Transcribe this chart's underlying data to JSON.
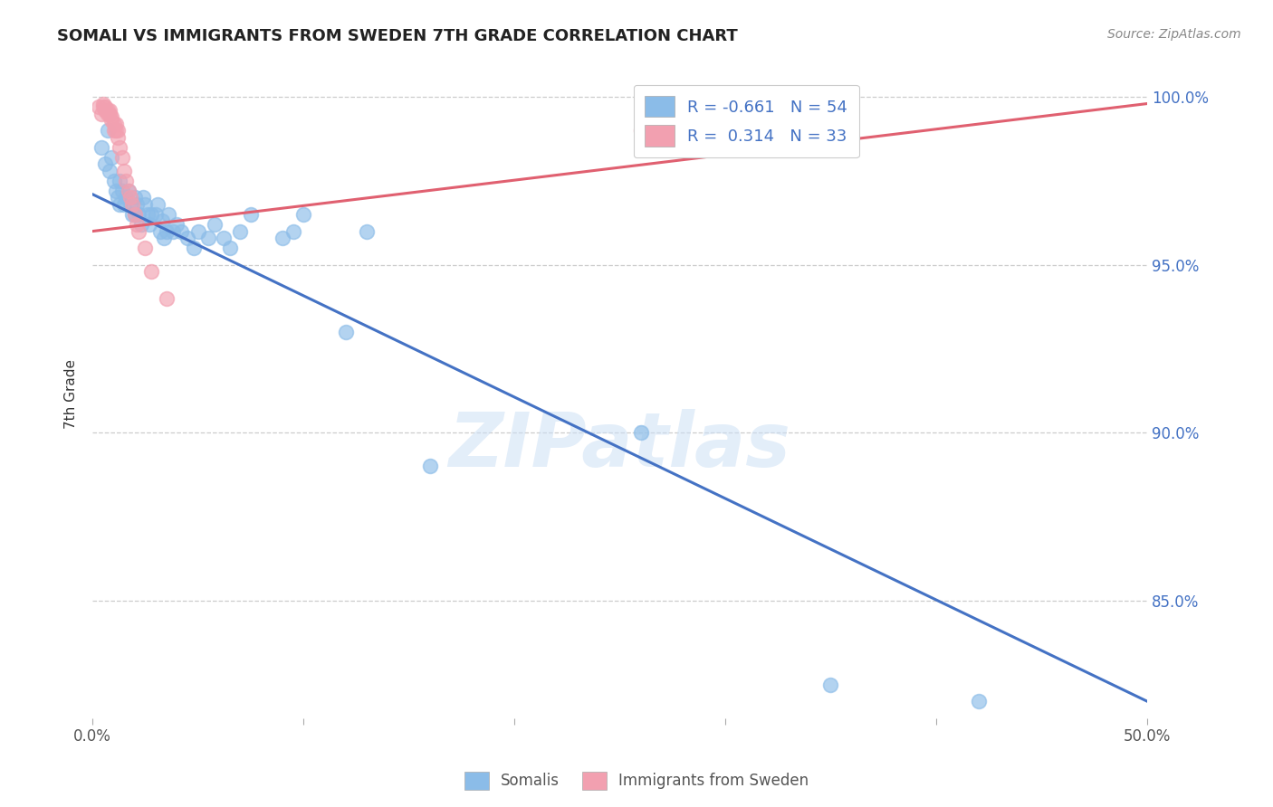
{
  "title": "SOMALI VS IMMIGRANTS FROM SWEDEN 7TH GRADE CORRELATION CHART",
  "source": "Source: ZipAtlas.com",
  "ylabel_label": "7th Grade",
  "xlim": [
    0.0,
    0.5
  ],
  "ylim": [
    0.815,
    1.008
  ],
  "ytick_positions": [
    0.85,
    0.9,
    0.95,
    1.0
  ],
  "ytick_labels": [
    "85.0%",
    "90.0%",
    "95.0%",
    "100.0%"
  ],
  "xtick_positions": [
    0.0,
    0.1,
    0.2,
    0.3,
    0.4,
    0.5
  ],
  "xtick_labels": [
    "0.0%",
    "",
    "",
    "",
    "",
    "50.0%"
  ],
  "blue_color": "#8BBCE8",
  "pink_color": "#F2A0B0",
  "blue_line_color": "#4472C4",
  "pink_line_color": "#E06070",
  "legend_blue_r": "-0.661",
  "legend_blue_n": "54",
  "legend_pink_r": "0.314",
  "legend_pink_n": "33",
  "legend_label_blue": "Somalis",
  "legend_label_pink": "Immigrants from Sweden",
  "watermark": "ZIPatlas",
  "blue_trend_x": [
    0.0,
    0.5
  ],
  "blue_trend_y": [
    0.971,
    0.82
  ],
  "pink_trend_x": [
    0.0,
    0.5
  ],
  "pink_trend_y": [
    0.96,
    0.998
  ],
  "blue_scatter_x": [
    0.004,
    0.006,
    0.007,
    0.008,
    0.009,
    0.01,
    0.011,
    0.012,
    0.013,
    0.013,
    0.014,
    0.015,
    0.016,
    0.017,
    0.018,
    0.019,
    0.02,
    0.02,
    0.021,
    0.022,
    0.023,
    0.024,
    0.025,
    0.026,
    0.027,
    0.028,
    0.03,
    0.031,
    0.032,
    0.033,
    0.034,
    0.035,
    0.036,
    0.038,
    0.04,
    0.042,
    0.045,
    0.048,
    0.05,
    0.055,
    0.058,
    0.062,
    0.065,
    0.07,
    0.075,
    0.09,
    0.095,
    0.1,
    0.12,
    0.13,
    0.16,
    0.26,
    0.35,
    0.42
  ],
  "blue_scatter_y": [
    0.985,
    0.98,
    0.99,
    0.978,
    0.982,
    0.975,
    0.972,
    0.97,
    0.968,
    0.975,
    0.972,
    0.968,
    0.97,
    0.972,
    0.968,
    0.965,
    0.97,
    0.965,
    0.968,
    0.965,
    0.962,
    0.97,
    0.968,
    0.965,
    0.962,
    0.965,
    0.965,
    0.968,
    0.96,
    0.963,
    0.958,
    0.96,
    0.965,
    0.96,
    0.962,
    0.96,
    0.958,
    0.955,
    0.96,
    0.958,
    0.962,
    0.958,
    0.955,
    0.96,
    0.965,
    0.958,
    0.96,
    0.965,
    0.93,
    0.96,
    0.89,
    0.9,
    0.825,
    0.82
  ],
  "pink_scatter_x": [
    0.003,
    0.004,
    0.005,
    0.005,
    0.006,
    0.006,
    0.007,
    0.007,
    0.008,
    0.008,
    0.009,
    0.009,
    0.01,
    0.01,
    0.011,
    0.011,
    0.012,
    0.012,
    0.013,
    0.014,
    0.015,
    0.016,
    0.017,
    0.018,
    0.019,
    0.02,
    0.021,
    0.022,
    0.025,
    0.028,
    0.035,
    0.26,
    0.33
  ],
  "pink_scatter_y": [
    0.997,
    0.995,
    0.997,
    0.998,
    0.996,
    0.997,
    0.995,
    0.996,
    0.995,
    0.996,
    0.993,
    0.994,
    0.992,
    0.99,
    0.99,
    0.992,
    0.988,
    0.99,
    0.985,
    0.982,
    0.978,
    0.975,
    0.972,
    0.97,
    0.968,
    0.965,
    0.962,
    0.96,
    0.955,
    0.948,
    0.94,
    0.99,
    0.998
  ]
}
